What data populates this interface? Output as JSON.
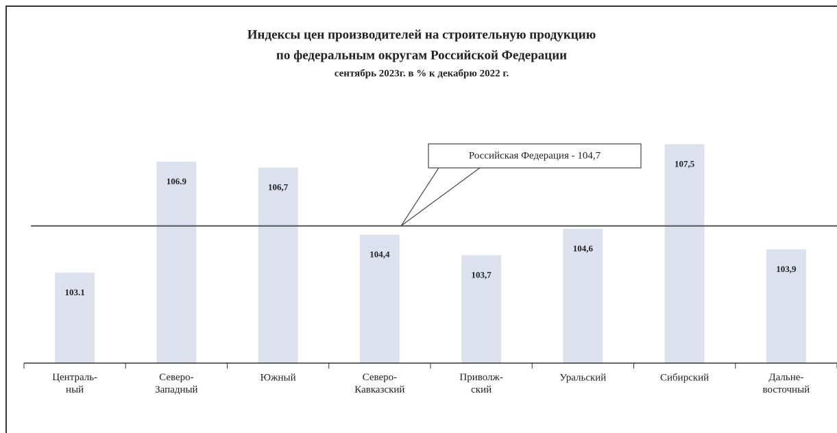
{
  "chart_data": {
    "type": "bar",
    "title": "Индексы цен производителей  на строительную  продукцию",
    "subtitle": "по федеральным  округам  Российской  Федерации",
    "note": "сентябрь 2023г. в % к декабрю 2022 г.",
    "categories": [
      "Централь-\nный",
      "Северо-\nЗападный",
      "Южный",
      "Северо-\nКавказский",
      "Приволж-\nский",
      "Уральский",
      "Сибирский",
      "Дальне-\nвосточный"
    ],
    "values": [
      103.1,
      106.9,
      106.7,
      104.4,
      103.7,
      104.6,
      107.5,
      103.9
    ],
    "value_labels": [
      "103.1",
      "106.9",
      "106,7",
      "104,4",
      "103,7",
      "104,6",
      "107,5",
      "103,9"
    ],
    "color": "#dde1ee",
    "ylim": [
      100,
      110
    ],
    "reference_line": {
      "text": "Российская Федерация - 104,7",
      "value": 104.7,
      "color": "#555555"
    }
  }
}
